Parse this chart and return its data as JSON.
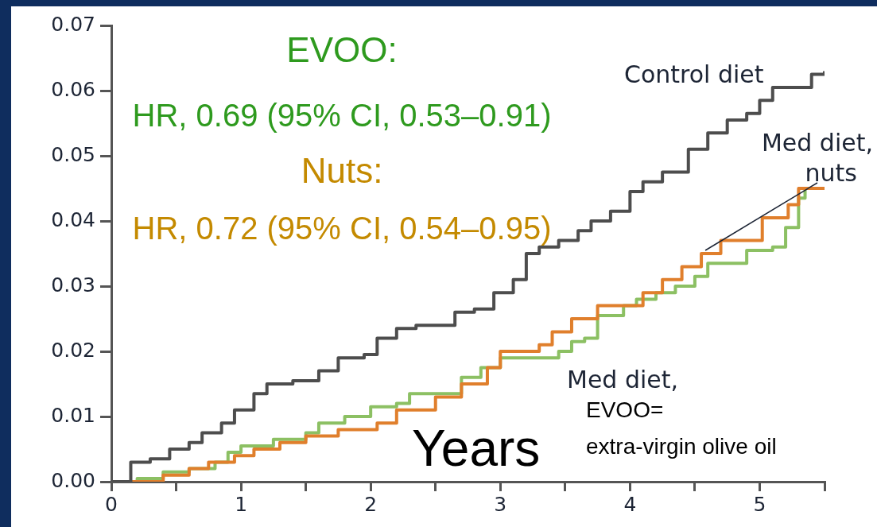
{
  "chart_data": {
    "type": "step",
    "xlabel": "Years",
    "xlim": [
      0,
      5.5
    ],
    "xticks": [
      0,
      {
        "value": 0.5,
        "label": null
      },
      1,
      {
        "value": 1.5,
        "label": null
      },
      2,
      {
        "value": 2.5,
        "label": null
      },
      3,
      {
        "value": 3.5,
        "label": null
      },
      4,
      {
        "value": 4.5,
        "label": null
      },
      5,
      {
        "value": 5.5,
        "label": null
      }
    ],
    "ylim": [
      0,
      0.07
    ],
    "yticks": [
      {
        "value": 0,
        "label": "0.00"
      },
      {
        "value": 0.01,
        "label": "0.01"
      },
      {
        "value": 0.02,
        "label": "0.02"
      },
      {
        "value": 0.03,
        "label": "0.03"
      },
      {
        "value": 0.04,
        "label": "0.04"
      },
      {
        "value": 0.05,
        "label": "0.05"
      },
      {
        "value": 0.06,
        "label": "0.06"
      },
      {
        "value": 0.07,
        "label": "0.07"
      }
    ],
    "grid": false,
    "legend": false,
    "marker": "none",
    "line_style": "solid",
    "series": [
      {
        "name": "Control diet",
        "color": "#4d4d4d",
        "x": [
          0,
          0.15,
          0.3,
          0.45,
          0.6,
          0.7,
          0.85,
          0.95,
          1.1,
          1.2,
          1.4,
          1.6,
          1.75,
          1.95,
          2.05,
          2.2,
          2.35,
          2.55,
          2.65,
          2.8,
          2.95,
          3.1,
          3.2,
          3.3,
          3.45,
          3.6,
          3.7,
          3.85,
          4.0,
          4.1,
          4.25,
          4.35,
          4.45,
          4.6,
          4.75,
          4.9,
          5.0,
          5.1,
          5.35,
          5.4,
          5.5
        ],
        "values": [
          0,
          0.003,
          0.0035,
          0.005,
          0.006,
          0.0075,
          0.009,
          0.011,
          0.0135,
          0.015,
          0.0155,
          0.017,
          0.019,
          0.0195,
          0.022,
          0.0235,
          0.024,
          0.024,
          0.026,
          0.0265,
          0.029,
          0.031,
          0.035,
          0.036,
          0.037,
          0.0385,
          0.04,
          0.0415,
          0.0445,
          0.046,
          0.0475,
          0.0475,
          0.051,
          0.0535,
          0.0555,
          0.0565,
          0.0585,
          0.0605,
          0.0605,
          0.0625,
          0.063
        ]
      },
      {
        "name": "Med diet, nuts",
        "color": "#e07f2c",
        "x": [
          0,
          0.2,
          0.4,
          0.6,
          0.75,
          0.95,
          1.1,
          1.3,
          1.5,
          1.75,
          2.05,
          2.2,
          2.5,
          2.7,
          2.9,
          3.0,
          3.3,
          3.4,
          3.55,
          3.75,
          4.0,
          4.1,
          4.25,
          4.4,
          4.55,
          4.7,
          4.95,
          5.02,
          5.15,
          5.22,
          5.3,
          5.5
        ],
        "values": [
          0,
          0,
          0.001,
          0.002,
          0.003,
          0.004,
          0.005,
          0.006,
          0.007,
          0.008,
          0.009,
          0.011,
          0.013,
          0.015,
          0.0175,
          0.02,
          0.021,
          0.023,
          0.025,
          0.027,
          0.027,
          0.029,
          0.031,
          0.033,
          0.035,
          0.037,
          0.037,
          0.0405,
          0.0405,
          0.0425,
          0.045,
          0.045
        ]
      },
      {
        "name": "Med diet,",
        "color": "#8cc063",
        "x": [
          0,
          0.2,
          0.4,
          0.6,
          0.8,
          0.9,
          1.0,
          1.25,
          1.5,
          1.6,
          1.8,
          2.0,
          2.2,
          2.3,
          2.5,
          2.7,
          2.85,
          3.0,
          3.3,
          3.45,
          3.55,
          3.65,
          3.75,
          3.95,
          4.05,
          4.2,
          4.35,
          4.5,
          4.6,
          4.9,
          5.1,
          5.2,
          5.3,
          5.35
        ],
        "values": [
          0,
          0.0005,
          0.0015,
          0.002,
          0.003,
          0.0045,
          0.0055,
          0.0065,
          0.0075,
          0.009,
          0.01,
          0.0115,
          0.012,
          0.0135,
          0.0135,
          0.016,
          0.0175,
          0.019,
          0.019,
          0.02,
          0.0215,
          0.022,
          0.0255,
          0.027,
          0.028,
          0.029,
          0.03,
          0.0315,
          0.0335,
          0.0355,
          0.036,
          0.039,
          0.0435,
          0.045
        ]
      }
    ],
    "annotations": [
      "EVOO:",
      "HR, 0.69 (95% CI, 0.53–0.91)",
      "Nuts:",
      "HR, 0.72 (95% CI, 0.54–0.95)",
      "EVOO=\nextra-virgin olive oil"
    ]
  }
}
